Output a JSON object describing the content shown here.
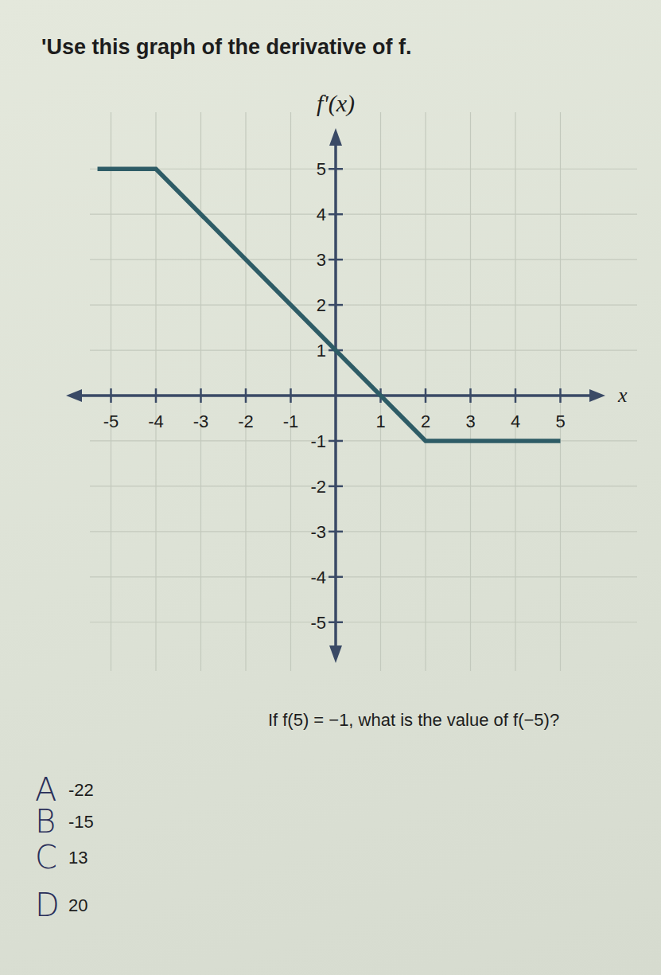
{
  "chart_data": {
    "type": "line",
    "title": "'Use this graph of the derivative of f.",
    "y_label": "f'(x)",
    "x_label": "x",
    "x": [
      -5.3,
      -4,
      2,
      5
    ],
    "values": [
      5,
      5,
      -1,
      -1
    ],
    "color": "#2e5c66",
    "xlim": [
      -6,
      6
    ],
    "ylim": [
      -5.9,
      5.9
    ],
    "xticks": [
      -5,
      -4,
      -3,
      -2,
      -1,
      1,
      2,
      3,
      4,
      5
    ],
    "yticks": [
      -5,
      -4,
      -3,
      -2,
      -1,
      1,
      2,
      3,
      4,
      5
    ],
    "grid": true
  },
  "question": {
    "text": "If f(5) = −1, what is the value of f(−5)?",
    "choices": [
      {
        "letter": "A",
        "text": "-22"
      },
      {
        "letter": "B",
        "text": "-15"
      },
      {
        "letter": "C",
        "text": "13"
      },
      {
        "letter": "D",
        "text": "20"
      }
    ]
  }
}
